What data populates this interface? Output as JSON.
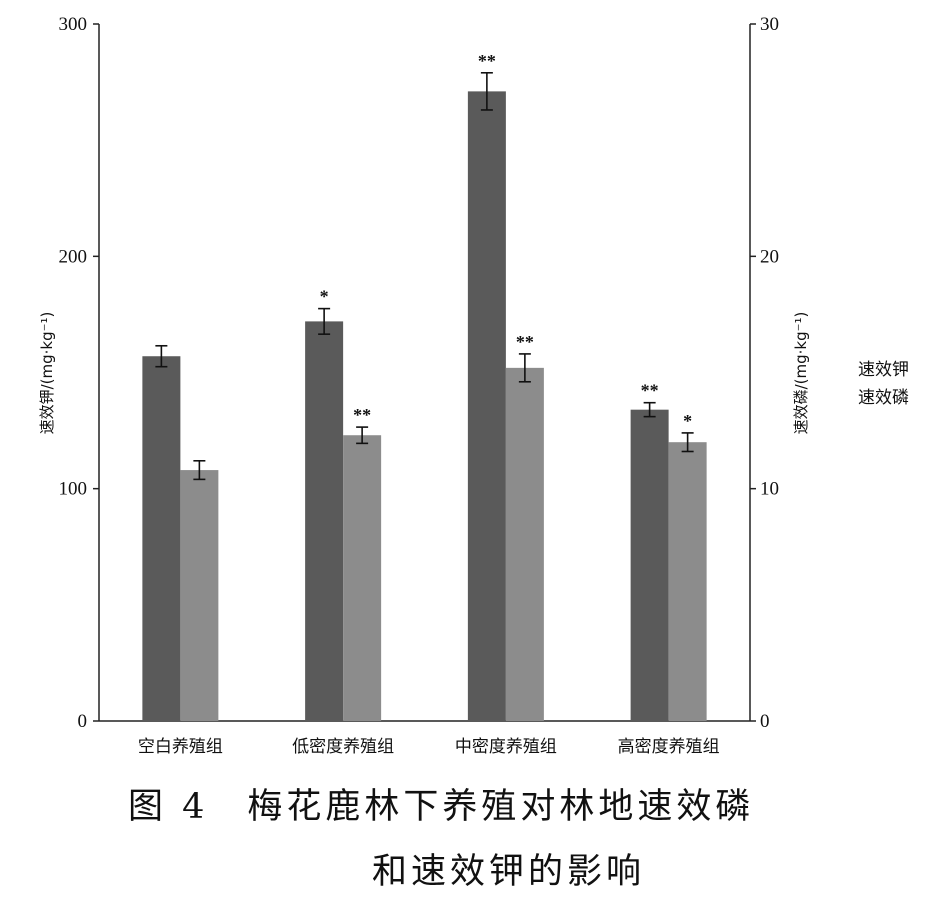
{
  "chart_data": {
    "type": "bar",
    "categories": [
      "空白养殖组",
      "低密度养殖组",
      "中密度养殖组",
      "高密度养殖组"
    ],
    "series": [
      {
        "name": "速效钾",
        "axis": "left",
        "color": "#5a5a5a",
        "values": [
          157,
          172,
          271,
          134
        ],
        "errors": [
          4.5,
          5.5,
          8,
          3
        ],
        "significance": [
          "",
          "*",
          "**",
          "**"
        ]
      },
      {
        "name": "速效磷",
        "axis": "right",
        "color": "#8c8c8c",
        "values": [
          10.8,
          12.3,
          15.2,
          12.0
        ],
        "errors": [
          0.4,
          0.35,
          0.6,
          0.4
        ],
        "significance": [
          "",
          "**",
          "**",
          "*"
        ]
      }
    ],
    "ylabel_left": "速效钾/(mg·kg⁻¹)",
    "ylabel_right": "速效磷/(mg·kg⁻¹)",
    "ylim_left": [
      0,
      300
    ],
    "ylim_right": [
      0,
      30
    ],
    "yticks_left": [
      "0",
      "100",
      "200",
      "300"
    ],
    "yticks_right": [
      "0",
      "10",
      "20",
      "30"
    ],
    "legend_position": "right"
  },
  "legend": {
    "items": [
      "速效钾",
      "速效磷"
    ]
  },
  "caption": {
    "line1": "图 4　梅花鹿林下养殖对林地速效磷",
    "line2": "和速效钾的影响"
  }
}
